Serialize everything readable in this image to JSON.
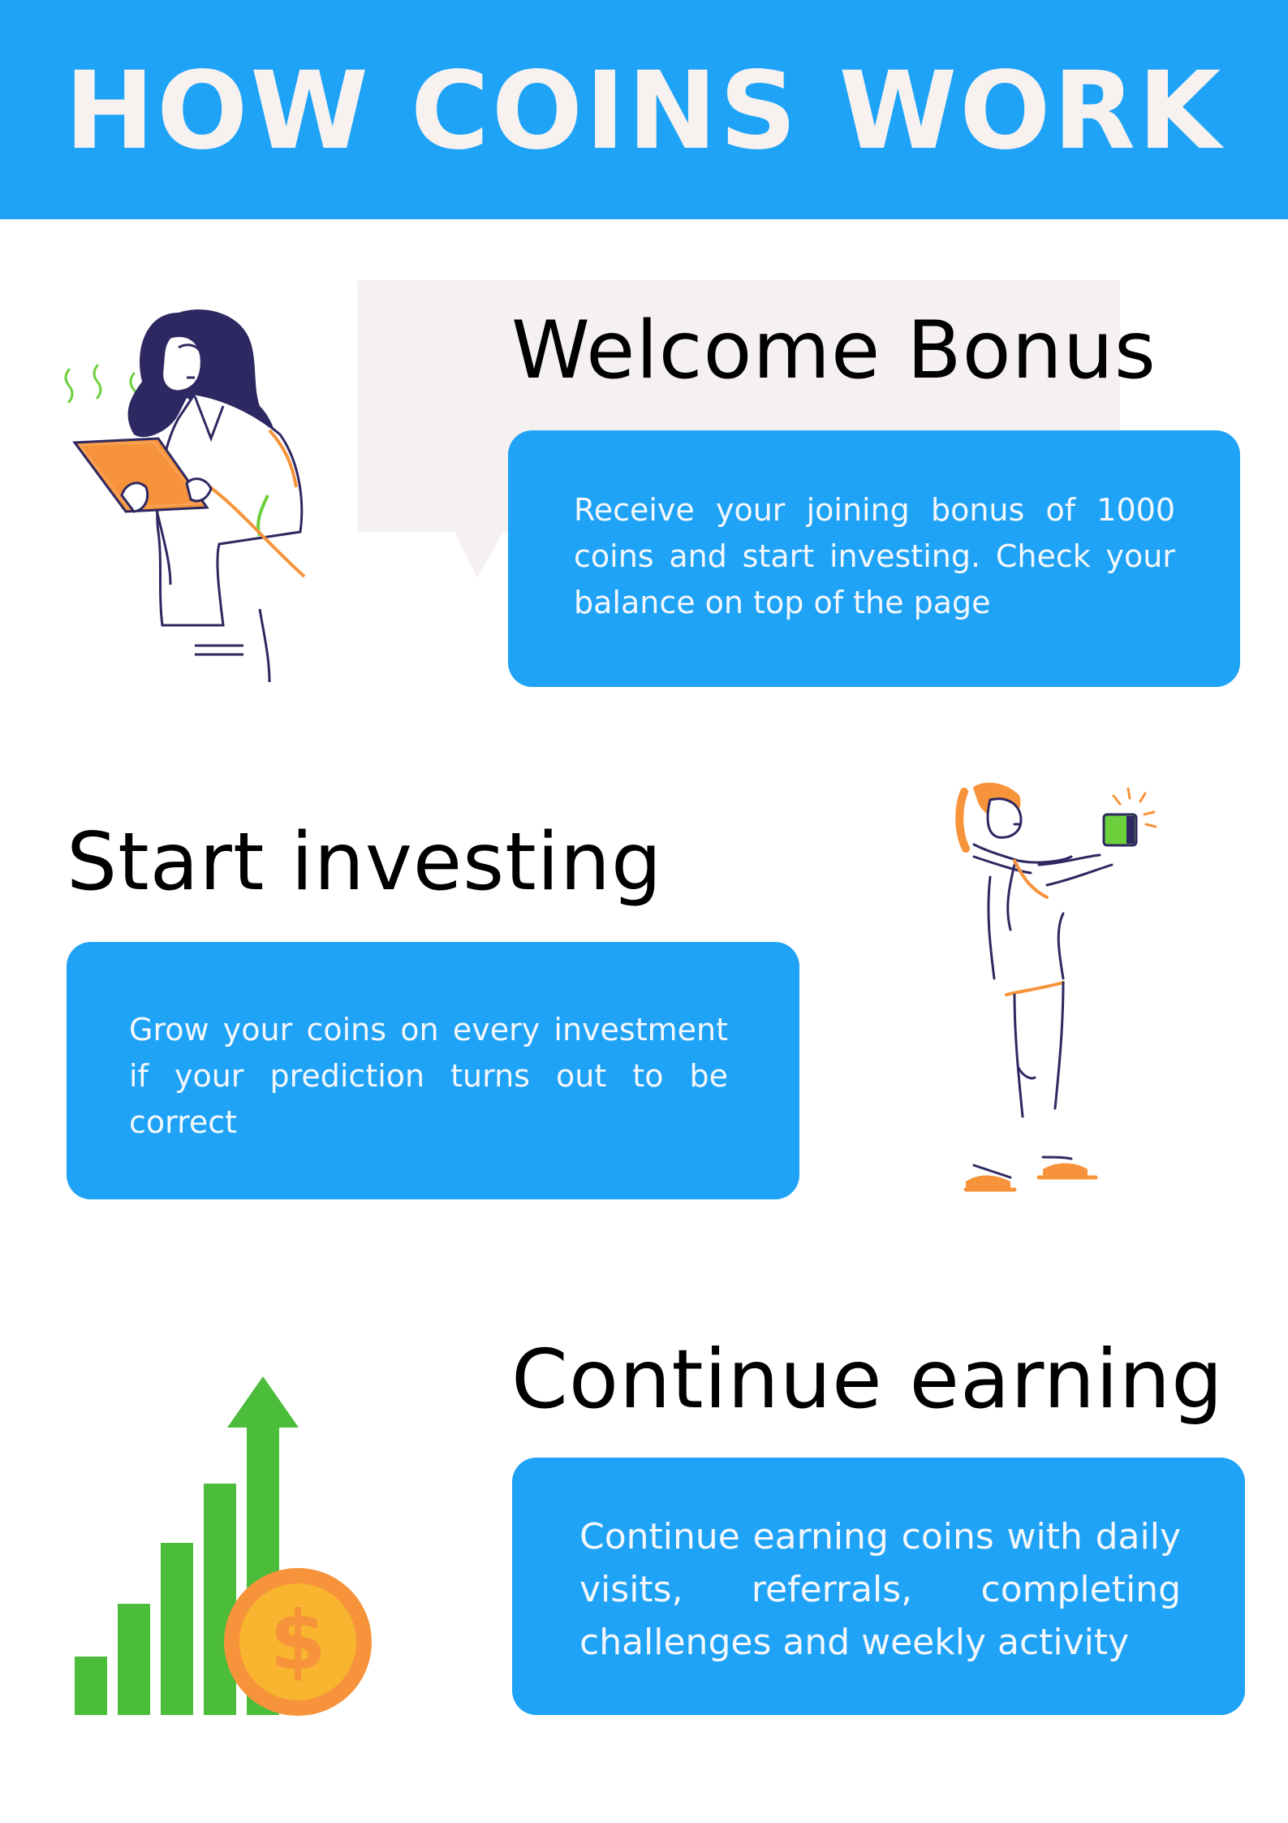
{
  "header": {
    "title": "HOW COINS WORK",
    "background_color": "#1fa3f7"
  },
  "sections": [
    {
      "title": "Welcome Bonus",
      "description": "Receive your joining bonus of 1000 coins and start investing. Check your balance on top of the page",
      "illustration": "woman-with-tablet-illustration"
    },
    {
      "title": "Start investing",
      "description": "Grow your coins on every investment if your prediction turns out to be correct",
      "illustration": "woman-holding-wallet-illustration"
    },
    {
      "title": "Continue earning",
      "description": "Continue earning coins with daily visits, referrals, completing challenges and weekly activity",
      "illustration": "growth-chart-with-dollar-coin-illustration"
    }
  ],
  "colors": {
    "card": "#1fa3f7",
    "card_text": "#f4f7fb",
    "speech_bubble": "#f6f1f1",
    "accent_orange": "#f7933a",
    "accent_green": "#4bbd3a",
    "coin_gold": "#f9b52f"
  }
}
